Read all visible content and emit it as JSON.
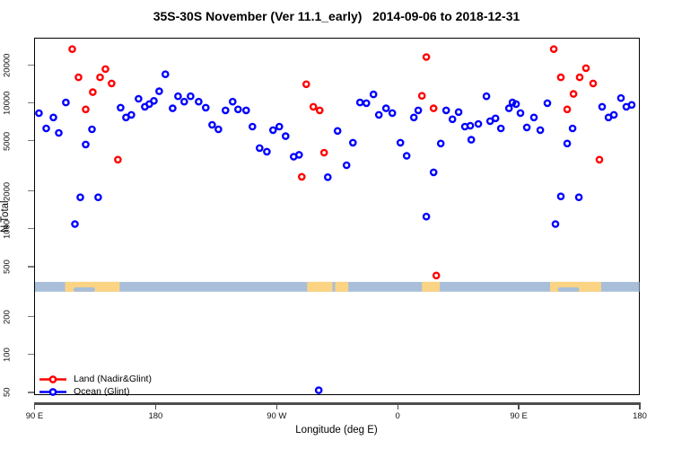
{
  "title": "35S-30S November (Ver 11.1_early)   2014-09-06 to 2018-12-31",
  "chart_data": {
    "type": "scatter",
    "title": "35S-30S November (Ver 11.1_early)   2014-09-06 to 2018-12-31",
    "xlabel": "Longitude (deg E)",
    "ylabel": "N Total",
    "x_axis": {
      "range_deg": [
        0,
        450
      ],
      "ticks_deg": [
        0,
        90,
        180,
        270,
        360,
        450
      ],
      "tick_labels": [
        "90 E",
        "180",
        "90 W",
        "0",
        "90 E",
        "180"
      ],
      "note": "longitude wraps eastward from 90E through 180, 90W, 0, 90E to 180"
    },
    "y_axis": {
      "scale": "log",
      "ticks": [
        50,
        100,
        200,
        500,
        1000,
        2000,
        5000,
        10000,
        20000
      ],
      "range": [
        47,
        33000
      ]
    },
    "grid": false,
    "legend_position": "bottom-left",
    "legend": [
      {
        "label": "Land (Nadir&Glint)",
        "color": "#ff0000"
      },
      {
        "label": "Ocean (Glint)",
        "color": "#0000ff"
      }
    ],
    "map_band": {
      "ocean_color": "#a9bed8",
      "land_color": "#fbd483",
      "n_range": [
        316,
        378
      ],
      "land_patches_deg": [
        [
          22.7,
          63.3
        ],
        [
          202.7,
          221.5
        ],
        [
          223.5,
          233.3
        ],
        [
          288,
          301.3
        ],
        [
          383.3,
          421.3
        ]
      ],
      "ocean_notches_deg": [
        [
          29,
          45
        ],
        [
          389,
          405
        ]
      ]
    },
    "series": [
      {
        "name": "Land (Nadir&Glint)",
        "color": "#ff0000",
        "points": [
          [
            28,
            26800
          ],
          [
            32.7,
            16000
          ],
          [
            38,
            8900
          ],
          [
            43.3,
            12200
          ],
          [
            48.7,
            16000
          ],
          [
            52.7,
            18600
          ],
          [
            57.3,
            14300
          ],
          [
            62,
            3540
          ],
          [
            198.7,
            2590
          ],
          [
            202,
            14100
          ],
          [
            207.3,
            9330
          ],
          [
            212,
            8740
          ],
          [
            215.3,
            4030
          ],
          [
            288,
            11400
          ],
          [
            291.3,
            23200
          ],
          [
            296.7,
            9070
          ],
          [
            298.7,
            425
          ],
          [
            386,
            26800
          ],
          [
            391.3,
            16000
          ],
          [
            396,
            8900
          ],
          [
            400.7,
            11800
          ],
          [
            405.3,
            16000
          ],
          [
            410,
            18900
          ],
          [
            415.3,
            14300
          ],
          [
            420,
            3540
          ]
        ]
      },
      {
        "name": "Ocean (Glint)",
        "color": "#0000ff",
        "points": [
          [
            3.3,
            8300
          ],
          [
            8.7,
            6280
          ],
          [
            14,
            7670
          ],
          [
            18,
            5780
          ],
          [
            23.3,
            10100
          ],
          [
            30,
            1090
          ],
          [
            34,
            1780
          ],
          [
            38,
            4680
          ],
          [
            42.7,
            6180
          ],
          [
            47.3,
            1780
          ],
          [
            64,
            9180
          ],
          [
            68,
            7670
          ],
          [
            72,
            8040
          ],
          [
            77.3,
            10800
          ],
          [
            82,
            9330
          ],
          [
            85.3,
            9800
          ],
          [
            88.7,
            10400
          ],
          [
            92.7,
            12400
          ],
          [
            97.3,
            16900
          ],
          [
            102.7,
            9070
          ],
          [
            106.7,
            11300
          ],
          [
            111.3,
            10250
          ],
          [
            116,
            11300
          ],
          [
            122,
            10250
          ],
          [
            127.3,
            9180
          ],
          [
            132,
            6700
          ],
          [
            136.7,
            6180
          ],
          [
            142,
            8740
          ],
          [
            147.3,
            10250
          ],
          [
            151.3,
            8890
          ],
          [
            157.3,
            8740
          ],
          [
            162,
            6490
          ],
          [
            167.3,
            4380
          ],
          [
            172.7,
            4100
          ],
          [
            177.3,
            6080
          ],
          [
            182,
            6490
          ],
          [
            186.7,
            5450
          ],
          [
            192.7,
            3740
          ],
          [
            196.7,
            3870
          ],
          [
            211.3,
            52
          ],
          [
            218,
            2570
          ],
          [
            225.3,
            5990
          ],
          [
            232,
            3200
          ],
          [
            236.7,
            4830
          ],
          [
            242,
            10100
          ],
          [
            246.7,
            9960
          ],
          [
            252,
            11700
          ],
          [
            256,
            8040
          ],
          [
            261.3,
            9070
          ],
          [
            266,
            8310
          ],
          [
            272,
            4830
          ],
          [
            276.7,
            3800
          ],
          [
            282,
            7670
          ],
          [
            285.3,
            8740
          ],
          [
            291.3,
            1250
          ],
          [
            296.7,
            2810
          ],
          [
            302,
            4760
          ],
          [
            306,
            8740
          ],
          [
            310.7,
            7420
          ],
          [
            315.3,
            8460
          ],
          [
            320,
            6490
          ],
          [
            324,
            6600
          ],
          [
            324.7,
            5100
          ],
          [
            330,
            6820
          ],
          [
            336,
            11300
          ],
          [
            338.7,
            7170
          ],
          [
            342.7,
            7540
          ],
          [
            346.7,
            6280
          ],
          [
            352.7,
            9070
          ],
          [
            355.3,
            10100
          ],
          [
            358,
            9800
          ],
          [
            361.3,
            8310
          ],
          [
            366,
            6390
          ],
          [
            371.3,
            7670
          ],
          [
            376,
            6080
          ],
          [
            381.3,
            9960
          ],
          [
            387.3,
            1090
          ],
          [
            391.3,
            1810
          ],
          [
            396,
            4760
          ],
          [
            400,
            6280
          ],
          [
            404.7,
            1780
          ],
          [
            422,
            9330
          ],
          [
            426.7,
            7670
          ],
          [
            430.7,
            8040
          ],
          [
            436,
            10950
          ],
          [
            440,
            9330
          ],
          [
            444,
            9650
          ]
        ]
      }
    ]
  }
}
